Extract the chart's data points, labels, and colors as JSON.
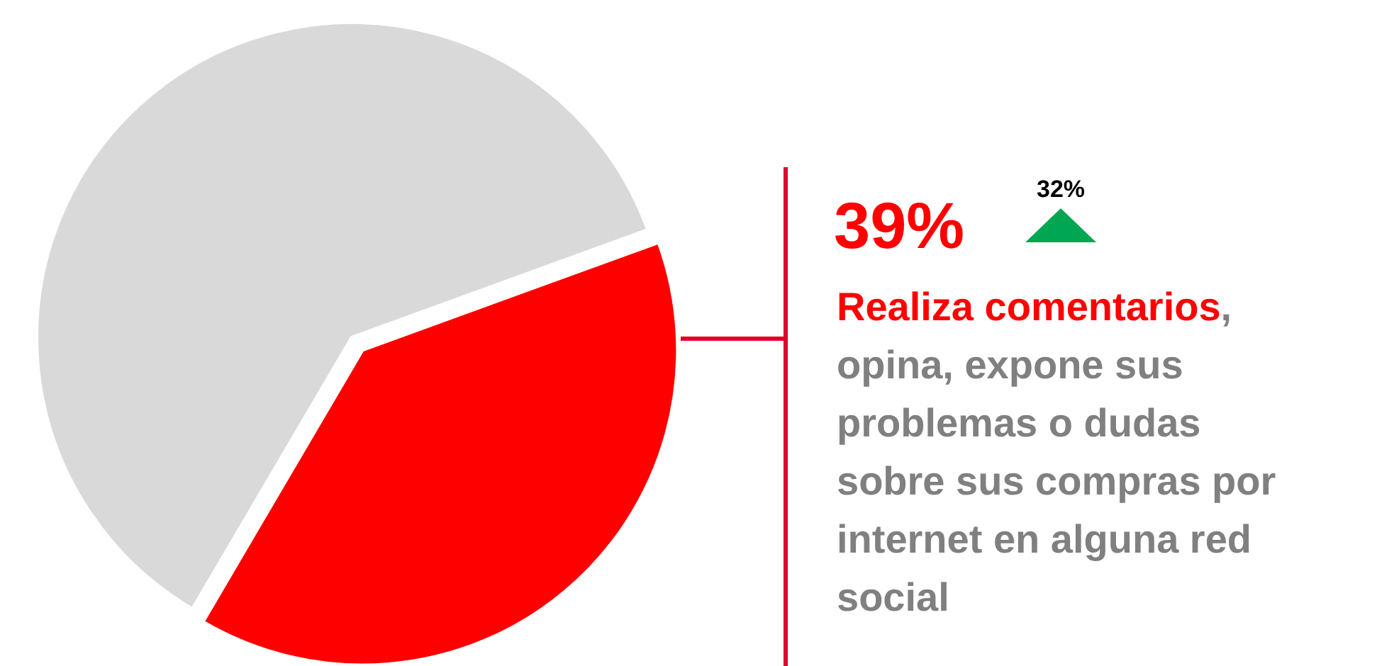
{
  "chart_data": {
    "type": "pie",
    "categories": [
      null,
      null
    ],
    "values": [
      39,
      61
    ],
    "colors": [
      "#ff0000",
      "#d9d9d9"
    ],
    "value_labels": [
      "39%",
      null
    ],
    "annotations": [
      "Realiza comentarios",
      ", opina, expone sus problemas o dudas sobre sus compras por internet en alguna red social",
      "32%"
    ]
  }
}
